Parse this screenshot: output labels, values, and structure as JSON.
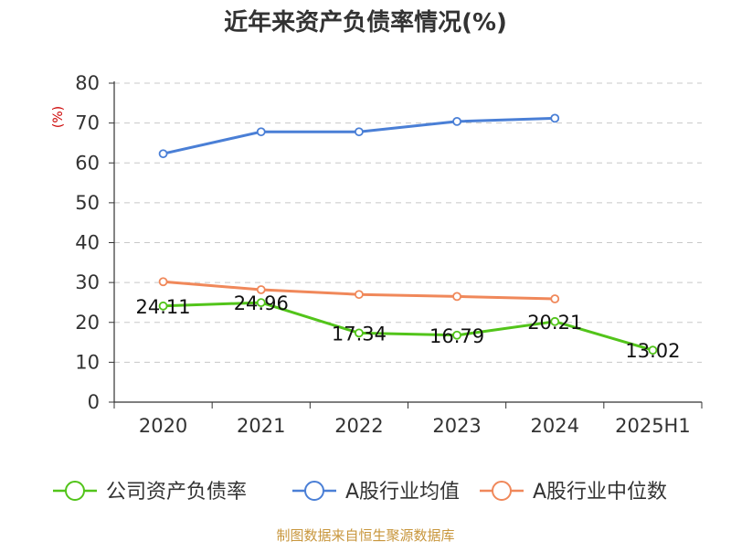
{
  "chart_data": {
    "type": "line",
    "title": "近年来资产负债率情况(%)",
    "ylabel": "(%)",
    "xlabel": "",
    "ylim": [
      0,
      80
    ],
    "yticks": [
      0,
      10,
      20,
      30,
      40,
      50,
      60,
      70,
      80
    ],
    "categories": [
      "2020",
      "2021",
      "2022",
      "2023",
      "2024",
      "2025H1"
    ],
    "grid": true,
    "legend_position": "bottom",
    "series": [
      {
        "name": "公司资产负债率",
        "color": "#52c41a",
        "values": [
          24.11,
          24.96,
          17.34,
          16.79,
          20.21,
          13.02
        ],
        "labels": [
          "24.11",
          "24.96",
          "17.34",
          "16.79",
          "20.21",
          "13.02"
        ]
      },
      {
        "name": "A股行业均值",
        "color": "#4a7fd6",
        "values": [
          62.3,
          67.8,
          67.8,
          70.4,
          71.2,
          null
        ]
      },
      {
        "name": "A股行业中位数",
        "color": "#f0885a",
        "values": [
          30.2,
          28.2,
          27.0,
          26.5,
          25.9,
          null
        ]
      }
    ],
    "source": "制图数据来自恒生聚源数据库"
  }
}
